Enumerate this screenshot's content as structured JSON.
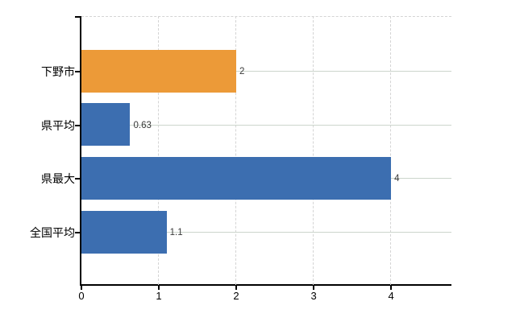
{
  "chart_data": {
    "type": "bar",
    "orientation": "horizontal",
    "title": "",
    "xlabel": "",
    "ylabel": "",
    "categories": [
      "下野市",
      "県平均",
      "県最大",
      "全国平均"
    ],
    "values": [
      2,
      0.63,
      4,
      1.1
    ],
    "value_labels": [
      "2",
      "0.63",
      "4",
      "1.1"
    ],
    "bar_colors": [
      "#ec9a38",
      "#3c6eb0",
      "#3c6eb0",
      "#3c6eb0"
    ],
    "x_tick_values": [
      0,
      1,
      2,
      3,
      4
    ],
    "x_tick_labels": [
      "0",
      "1",
      "2",
      "3",
      "4"
    ],
    "xlim": [
      0,
      4.78
    ],
    "grid": {
      "horizontal": "solid",
      "vertical": "dashed",
      "horizontal_color": "#ccd5cc",
      "vertical_color": "#d4d4d4"
    },
    "legend": "none",
    "colors": {
      "highlight_bar": "#ec9a38",
      "default_bar": "#3c6eb0",
      "axis": "#000000",
      "value_label_text": "#3a3a3a",
      "category_label_text": "#000000",
      "background": "#ffffff"
    }
  }
}
